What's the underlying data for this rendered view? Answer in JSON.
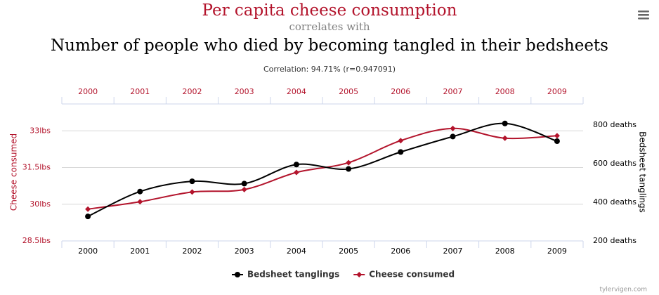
{
  "chart_data": {
    "type": "line",
    "title": "Per capita cheese consumption",
    "subtitle": "correlates with",
    "title2": "Number of people who died by becoming tangled in their bedsheets",
    "annotation": "Correlation: 94.71% (r=0.947091)",
    "source": "tylervigen.com",
    "categories": [
      "2000",
      "2001",
      "2002",
      "2003",
      "2004",
      "2005",
      "2006",
      "2007",
      "2008",
      "2009"
    ],
    "y_label": "Cheese consumed",
    "y2_label": "Bedsheet tanglings",
    "ylim": [
      28.5,
      34.1
    ],
    "yticks": [
      {
        "value": 28.5,
        "label": "28.5lbs"
      },
      {
        "value": 30,
        "label": "30lbs"
      },
      {
        "value": 31.5,
        "label": "31.5lbs"
      },
      {
        "value": 33,
        "label": "33lbs"
      }
    ],
    "y2lim": [
      200,
      910
    ],
    "y2ticks": [
      {
        "value": 200,
        "label": "200 deaths"
      },
      {
        "value": 400,
        "label": "400 deaths"
      },
      {
        "value": 600,
        "label": "600 deaths"
      },
      {
        "value": 800,
        "label": "800 deaths"
      }
    ],
    "grid": true,
    "legend": "bottom",
    "series": [
      {
        "name": "Bedsheet tanglings",
        "color": "#000000",
        "axis": "y2",
        "marker": "circle",
        "values": [
          327,
          456,
          509,
          497,
          596,
          573,
          661,
          741,
          809,
          717
        ]
      },
      {
        "name": "Cheese consumed",
        "color": "#b3142c",
        "axis": "y",
        "marker": "diamond",
        "values": [
          29.8,
          30.1,
          30.5,
          30.6,
          31.3,
          31.7,
          32.6,
          33.1,
          32.7,
          32.8
        ]
      }
    ]
  }
}
